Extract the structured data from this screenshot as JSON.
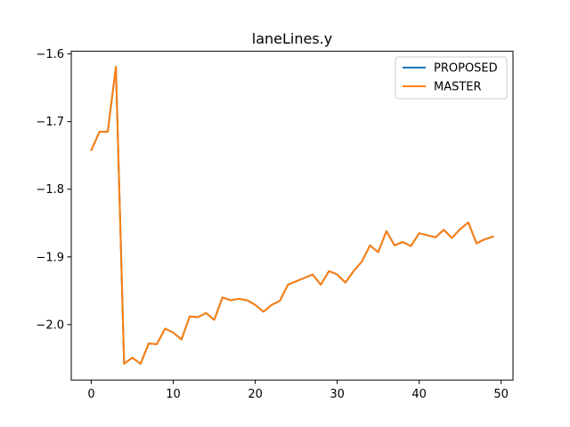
{
  "chart_data": {
    "type": "line",
    "title": "laneLines.y",
    "xlabel": "",
    "ylabel": "",
    "xlim": [
      -2.45,
      51.45
    ],
    "ylim": [
      -2.082,
      -1.596
    ],
    "xticks": [
      0,
      10,
      20,
      30,
      40,
      50
    ],
    "yticks": [
      -1.6,
      -1.7,
      -1.8,
      -1.9,
      -2.0
    ],
    "ytick_labels": [
      "−1.6",
      "−1.7",
      "−1.8",
      "−1.9",
      "−2.0"
    ],
    "grid": false,
    "legend": {
      "placement": "top-right"
    },
    "x": [
      0,
      1,
      2,
      3,
      4,
      5,
      6,
      7,
      8,
      9,
      10,
      11,
      12,
      13,
      14,
      15,
      16,
      17,
      18,
      19,
      20,
      21,
      22,
      23,
      24,
      25,
      26,
      27,
      28,
      29,
      30,
      31,
      32,
      33,
      34,
      35,
      36,
      37,
      38,
      39,
      40,
      41,
      42,
      43,
      44,
      45,
      46,
      47,
      48,
      49
    ],
    "series": [
      {
        "name": "PROPOSED",
        "color": "#1f77b4",
        "values": [
          -1.742,
          -1.715,
          -1.715,
          -1.619,
          -2.058,
          -2.049,
          -2.058,
          -2.028,
          -2.029,
          -2.006,
          -2.012,
          -2.022,
          -1.988,
          -1.989,
          -1.983,
          -1.993,
          -1.96,
          -1.964,
          -1.962,
          -1.964,
          -1.971,
          -1.981,
          -1.971,
          -1.965,
          -1.941,
          -1.936,
          -1.931,
          -1.926,
          -1.941,
          -1.921,
          -1.926,
          -1.938,
          -1.921,
          -1.907,
          -1.883,
          -1.893,
          -1.862,
          -1.883,
          -1.878,
          -1.884,
          -1.865,
          -1.868,
          -1.871,
          -1.86,
          -1.872,
          -1.859,
          -1.849,
          -1.88,
          -1.874,
          -1.87
        ]
      },
      {
        "name": "MASTER",
        "color": "#ff7f0e",
        "values": [
          -1.742,
          -1.715,
          -1.715,
          -1.619,
          -2.058,
          -2.049,
          -2.058,
          -2.028,
          -2.029,
          -2.006,
          -2.012,
          -2.022,
          -1.988,
          -1.989,
          -1.983,
          -1.993,
          -1.96,
          -1.964,
          -1.962,
          -1.964,
          -1.971,
          -1.981,
          -1.971,
          -1.965,
          -1.941,
          -1.936,
          -1.931,
          -1.926,
          -1.941,
          -1.921,
          -1.926,
          -1.938,
          -1.921,
          -1.907,
          -1.883,
          -1.893,
          -1.862,
          -1.883,
          -1.878,
          -1.884,
          -1.865,
          -1.868,
          -1.871,
          -1.86,
          -1.872,
          -1.859,
          -1.849,
          -1.88,
          -1.874,
          -1.87
        ]
      }
    ]
  }
}
